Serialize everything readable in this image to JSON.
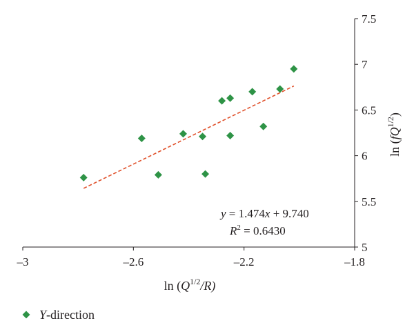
{
  "chart_data": {
    "type": "scatter",
    "xlim": [
      -3,
      -1.8
    ],
    "ylim": [
      5,
      7.5
    ],
    "x_ticks": [
      -3,
      -2.6,
      -2.2,
      -1.8
    ],
    "y_ticks": [
      5,
      5.5,
      6,
      6.5,
      7,
      7.5
    ],
    "x_tick_labels": [
      "–3",
      "–2.6",
      "–2.2",
      "–1.8"
    ],
    "y_tick_labels": [
      "5",
      "5.5",
      "6",
      "6.5",
      "7",
      "7.5"
    ],
    "xlabel": {
      "prefix": "ln (",
      "base": "Q",
      "sup": "1/2",
      "suffix": "/R)"
    },
    "ylabel": {
      "prefix": "ln (",
      "italic": "fQ",
      "sup": "1/2",
      "suffix": ")"
    },
    "grid": false,
    "legend_position": "bottom-left",
    "series": [
      {
        "name": "Y-direction",
        "name_italic": "Y",
        "name_rest": "-direction",
        "color": "#2e9346",
        "marker": "diamond",
        "points": [
          [
            -2.78,
            5.76
          ],
          [
            -2.57,
            6.19
          ],
          [
            -2.51,
            5.79
          ],
          [
            -2.42,
            6.24
          ],
          [
            -2.35,
            6.21
          ],
          [
            -2.34,
            5.8
          ],
          [
            -2.28,
            6.6
          ],
          [
            -2.25,
            6.63
          ],
          [
            -2.25,
            6.22
          ],
          [
            -2.17,
            6.7
          ],
          [
            -2.13,
            6.32
          ],
          [
            -2.07,
            6.73
          ],
          [
            -2.02,
            6.95
          ]
        ]
      }
    ],
    "trendline": {
      "color": "#e0502a",
      "style": "dashed",
      "slope": 1.474,
      "intercept": 9.74,
      "x_range": [
        -2.78,
        -2.02
      ],
      "equation_y": "y",
      "equation_rest": " = 1.474",
      "equation_x": "x",
      "equation_tail": " + 9.740",
      "r2_base": "R",
      "r2_sup": "2",
      "r2_rest": " = 0.6430"
    }
  }
}
